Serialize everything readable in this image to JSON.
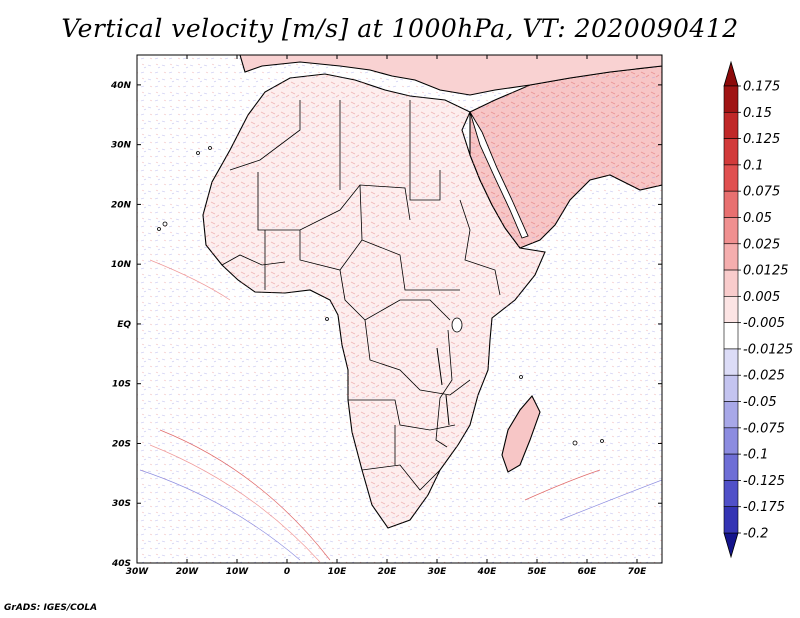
{
  "title": "Vertical velocity [m/s] at 1000hPa, VT: 2020090412",
  "credit": "GrADS: IGES/COLA",
  "map": {
    "lon_range": [
      -30,
      75
    ],
    "lat_range": [
      -40,
      45
    ],
    "x_ticks": [
      {
        "value": -30,
        "label": "30W"
      },
      {
        "value": -20,
        "label": "20W"
      },
      {
        "value": -10,
        "label": "10W"
      },
      {
        "value": 0,
        "label": "0"
      },
      {
        "value": 10,
        "label": "10E"
      },
      {
        "value": 20,
        "label": "20E"
      },
      {
        "value": 30,
        "label": "30E"
      },
      {
        "value": 40,
        "label": "40E"
      },
      {
        "value": 50,
        "label": "50E"
      },
      {
        "value": 60,
        "label": "60E"
      },
      {
        "value": 70,
        "label": "70E"
      }
    ],
    "y_ticks": [
      {
        "value": 40,
        "label": "40N"
      },
      {
        "value": 30,
        "label": "30N"
      },
      {
        "value": 20,
        "label": "20N"
      },
      {
        "value": 10,
        "label": "10N"
      },
      {
        "value": 0,
        "label": "EQ"
      },
      {
        "value": -10,
        "label": "10S"
      },
      {
        "value": -20,
        "label": "20S"
      },
      {
        "value": -30,
        "label": "30S"
      },
      {
        "value": -40,
        "label": "40S"
      }
    ]
  },
  "colorbar": {
    "levels": [
      {
        "label": "0.175",
        "color": "#a01414"
      },
      {
        "label": "0.15",
        "color": "#c02828"
      },
      {
        "label": "0.125",
        "color": "#d23a3a"
      },
      {
        "label": "0.1",
        "color": "#e05050"
      },
      {
        "label": "0.075",
        "color": "#e87070"
      },
      {
        "label": "0.05",
        "color": "#f09090"
      },
      {
        "label": "0.025",
        "color": "#f5aeae"
      },
      {
        "label": "0.0125",
        "color": "#f9cccc"
      },
      {
        "label": "0.005",
        "color": "#fce4e4"
      },
      {
        "label": "-0.005",
        "color": "#ffffff"
      },
      {
        "label": "-0.0125",
        "color": "#dcdcf7"
      },
      {
        "label": "-0.025",
        "color": "#c4c4f0"
      },
      {
        "label": "-0.05",
        "color": "#a8a8e8"
      },
      {
        "label": "-0.075",
        "color": "#8c8ce0"
      },
      {
        "label": "-0.1",
        "color": "#6e6ed6"
      },
      {
        "label": "-0.125",
        "color": "#5050c8"
      },
      {
        "label": "-0.175",
        "color": "#3434b4"
      },
      {
        "label": "-0.2",
        "color": "#1e1e9c"
      }
    ],
    "top_arrow_color": "#8c0a0a",
    "bottom_arrow_color": "#14148c"
  }
}
